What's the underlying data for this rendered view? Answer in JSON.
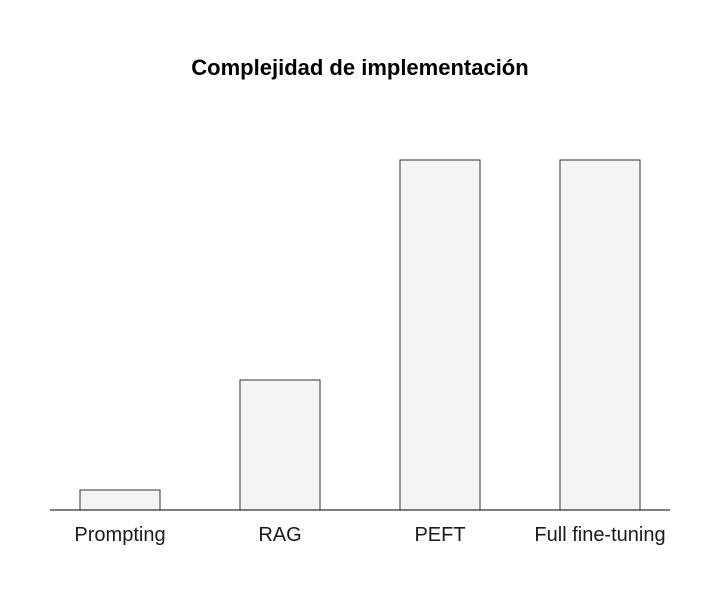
{
  "chart_data": {
    "type": "bar",
    "title": "Complejidad de implementación",
    "xlabel": "",
    "ylabel": "",
    "categories": [
      "Prompting",
      "RAG",
      "PEFT",
      "Full fine-tuning"
    ],
    "values": [
      0.2,
      1.3,
      3.5,
      3.5
    ],
    "ylim": [
      0,
      3.5
    ],
    "grid": false,
    "colors": {
      "bar_fill": "#f4f4f4",
      "bar_stroke": "#333333",
      "axis": "#000000"
    }
  }
}
